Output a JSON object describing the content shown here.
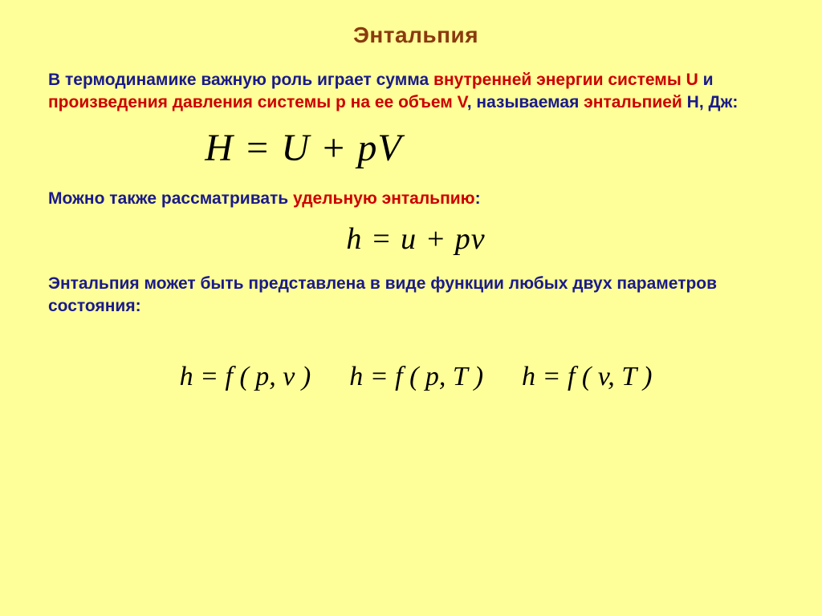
{
  "title": "Энтальпия",
  "para1": {
    "t1": "В термодинамике важную роль играет сумма ",
    "h1": "внутренней энергии системы U",
    "t2": " и ",
    "h2": "произведения давления системы p на ее объем V",
    "t3": ", называемая ",
    "h3": "энтальпией",
    "t4": " H, Дж:"
  },
  "eq1": "H = U + pV",
  "para2": {
    "t1": "Можно также рассматривать ",
    "h1": "удельную энтальпию",
    "t2": ":"
  },
  "eq2": "h = u + pv",
  "para3": "Энтальпия может быть представлена в виде функции любых двух параметров состояния:",
  "eq3_items": [
    "h = f ( p, v )",
    "h = f ( p, T )",
    "h = f ( v, T )"
  ],
  "colors": {
    "background": "#ffff99",
    "body_text": "#1a1a8a",
    "title_text": "#8a3b0e",
    "highlight": "#cc0000",
    "equation_text": "#000000"
  },
  "typography": {
    "body_font": "Comic Sans MS",
    "equation_font": "Times New Roman",
    "title_size_pt": 21,
    "body_size_pt": 16,
    "eq_big_size_pt": 36,
    "eq_med_size_pt": 28,
    "eq_small_size_pt": 25
  }
}
